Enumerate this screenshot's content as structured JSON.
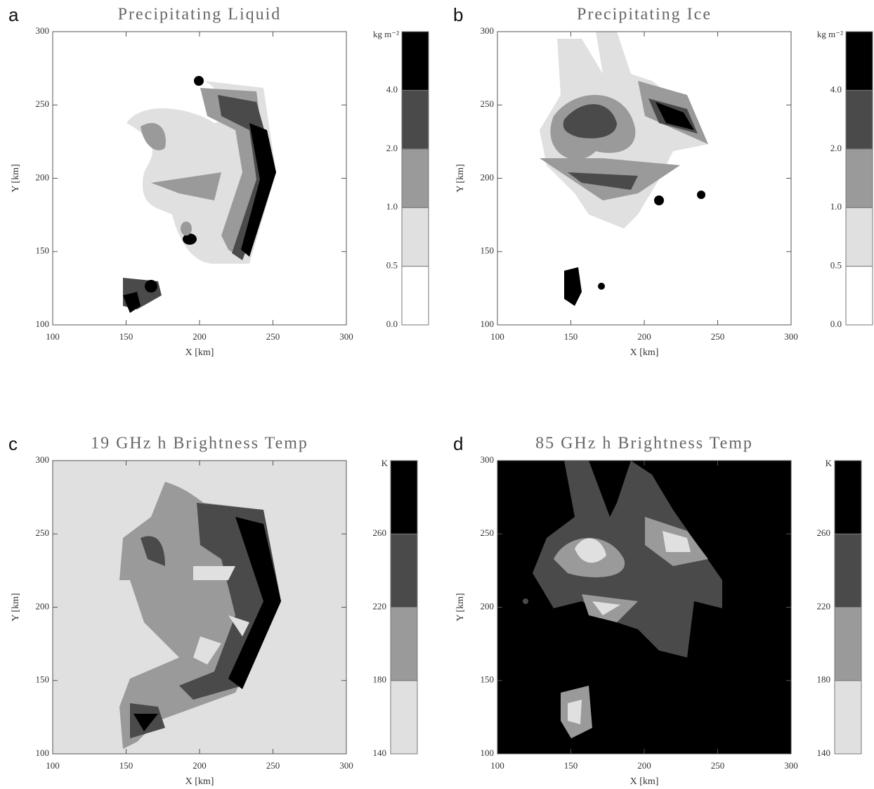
{
  "chart_data": [
    {
      "type": "contour",
      "panel": "a",
      "title": "Precipitating Liquid",
      "x_label": "X [km]",
      "y_label": "Y [km]",
      "xlim": [
        100,
        300
      ],
      "ylim": [
        100,
        300
      ],
      "xticks": [
        100,
        150,
        200,
        250,
        300
      ],
      "yticks": [
        100,
        150,
        200,
        250,
        300
      ],
      "field_color": "#ffffff",
      "colorbar": {
        "unit": "kg m⁻²",
        "levels": [
          {
            "value": 0,
            "label": "0.0"
          },
          0.5,
          {
            "value": 1,
            "label": "1.0"
          },
          {
            "value": 2,
            "label": "2.0"
          },
          {
            "value": 4,
            "label": "4.0"
          }
        ],
        "colors": [
          "#ffffff",
          "#e0e0e0",
          "#9a9a9a",
          "#4a4a4a",
          "#000000"
        ]
      }
    },
    {
      "type": "contour",
      "panel": "b",
      "title": "Precipitating Ice",
      "x_label": "X [km]",
      "y_label": "Y [km]",
      "xlim": [
        100,
        300
      ],
      "ylim": [
        100,
        300
      ],
      "xticks": [
        100,
        150,
        200,
        250,
        300
      ],
      "yticks": [
        100,
        150,
        200,
        250,
        300
      ],
      "field_color": "#ffffff",
      "colorbar": {
        "unit": "kg m⁻²",
        "levels": [
          {
            "value": 0,
            "label": "0.0"
          },
          0.5,
          {
            "value": 1,
            "label": "1.0"
          },
          {
            "value": 2,
            "label": "2.0"
          },
          {
            "value": 4,
            "label": "4.0"
          }
        ],
        "colors": [
          "#ffffff",
          "#e0e0e0",
          "#9a9a9a",
          "#4a4a4a",
          "#000000"
        ]
      }
    },
    {
      "type": "contour",
      "panel": "c",
      "title": "19 GHz h Brightness Temp",
      "x_label": "X [km]",
      "y_label": "Y [km]",
      "xlim": [
        100,
        300
      ],
      "ylim": [
        100,
        300
      ],
      "xticks": [
        100,
        150,
        200,
        250,
        300
      ],
      "yticks": [
        100,
        150,
        200,
        250,
        300
      ],
      "field_color": "#e0e0e0",
      "colorbar": {
        "unit": "K",
        "levels": [
          140,
          180,
          220,
          260
        ],
        "colors": [
          "#e0e0e0",
          "#9a9a9a",
          "#4a4a4a",
          "#000000"
        ]
      }
    },
    {
      "type": "contour",
      "panel": "d",
      "title": "85 GHz h Brightness Temp",
      "x_label": "X [km]",
      "y_label": "Y [km]",
      "xlim": [
        100,
        300
      ],
      "ylim": [
        100,
        300
      ],
      "xticks": [
        100,
        150,
        200,
        250,
        300
      ],
      "yticks": [
        100,
        150,
        200,
        250,
        300
      ],
      "field_color": "#000000",
      "colorbar": {
        "unit": "K",
        "levels": [
          140,
          180,
          220,
          260
        ],
        "colors": [
          "#e0e0e0",
          "#9a9a9a",
          "#4a4a4a",
          "#000000"
        ]
      }
    }
  ]
}
